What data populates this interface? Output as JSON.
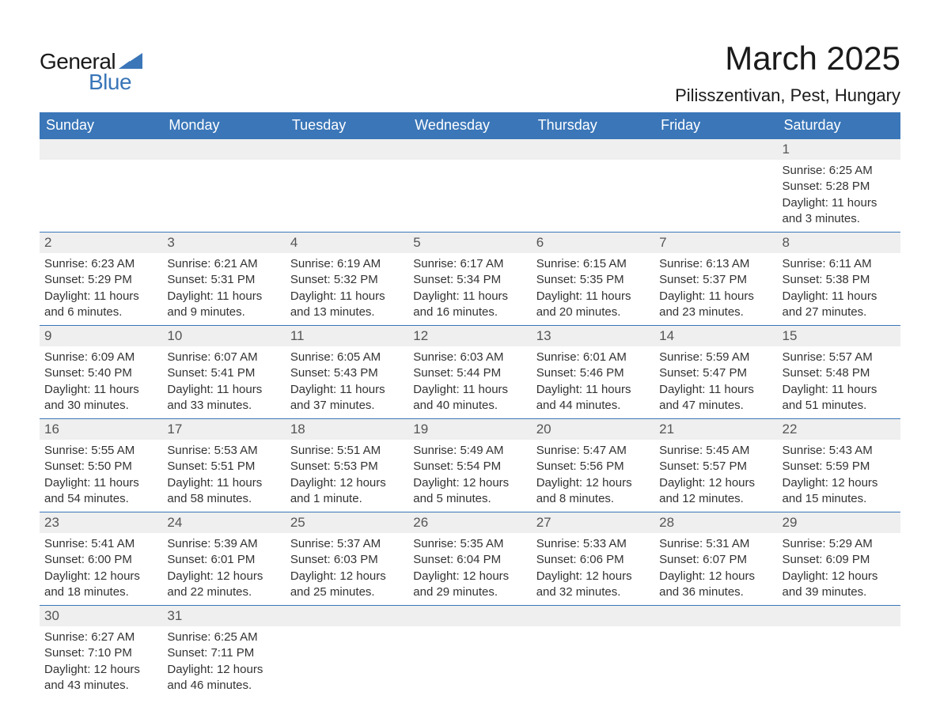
{
  "brand": {
    "word1": "General",
    "word2": "Blue",
    "logo_fill": "#3a76b8",
    "text_color_dark": "#1a1a1a",
    "text_color_blue": "#3a76b8"
  },
  "header": {
    "month_title": "March 2025",
    "location": "Pilisszentivan, Pest, Hungary"
  },
  "calendar": {
    "type": "table",
    "columns": [
      "Sunday",
      "Monday",
      "Tuesday",
      "Wednesday",
      "Thursday",
      "Friday",
      "Saturday"
    ],
    "header_bg": "#3a76b8",
    "header_fg": "#ffffff",
    "daynum_bg": "#efefef",
    "daynum_border_top": "#3a76b8",
    "body_text_color": "#333333",
    "font_family": "Arial",
    "header_fontsize": 18,
    "daynum_fontsize": 17,
    "body_fontsize": 15,
    "weeks": [
      [
        {
          "n": "",
          "sunrise": "",
          "sunset": "",
          "daylight1": "",
          "daylight2": ""
        },
        {
          "n": "",
          "sunrise": "",
          "sunset": "",
          "daylight1": "",
          "daylight2": ""
        },
        {
          "n": "",
          "sunrise": "",
          "sunset": "",
          "daylight1": "",
          "daylight2": ""
        },
        {
          "n": "",
          "sunrise": "",
          "sunset": "",
          "daylight1": "",
          "daylight2": ""
        },
        {
          "n": "",
          "sunrise": "",
          "sunset": "",
          "daylight1": "",
          "daylight2": ""
        },
        {
          "n": "",
          "sunrise": "",
          "sunset": "",
          "daylight1": "",
          "daylight2": ""
        },
        {
          "n": "1",
          "sunrise": "Sunrise: 6:25 AM",
          "sunset": "Sunset: 5:28 PM",
          "daylight1": "Daylight: 11 hours",
          "daylight2": "and 3 minutes."
        }
      ],
      [
        {
          "n": "2",
          "sunrise": "Sunrise: 6:23 AM",
          "sunset": "Sunset: 5:29 PM",
          "daylight1": "Daylight: 11 hours",
          "daylight2": "and 6 minutes."
        },
        {
          "n": "3",
          "sunrise": "Sunrise: 6:21 AM",
          "sunset": "Sunset: 5:31 PM",
          "daylight1": "Daylight: 11 hours",
          "daylight2": "and 9 minutes."
        },
        {
          "n": "4",
          "sunrise": "Sunrise: 6:19 AM",
          "sunset": "Sunset: 5:32 PM",
          "daylight1": "Daylight: 11 hours",
          "daylight2": "and 13 minutes."
        },
        {
          "n": "5",
          "sunrise": "Sunrise: 6:17 AM",
          "sunset": "Sunset: 5:34 PM",
          "daylight1": "Daylight: 11 hours",
          "daylight2": "and 16 minutes."
        },
        {
          "n": "6",
          "sunrise": "Sunrise: 6:15 AM",
          "sunset": "Sunset: 5:35 PM",
          "daylight1": "Daylight: 11 hours",
          "daylight2": "and 20 minutes."
        },
        {
          "n": "7",
          "sunrise": "Sunrise: 6:13 AM",
          "sunset": "Sunset: 5:37 PM",
          "daylight1": "Daylight: 11 hours",
          "daylight2": "and 23 minutes."
        },
        {
          "n": "8",
          "sunrise": "Sunrise: 6:11 AM",
          "sunset": "Sunset: 5:38 PM",
          "daylight1": "Daylight: 11 hours",
          "daylight2": "and 27 minutes."
        }
      ],
      [
        {
          "n": "9",
          "sunrise": "Sunrise: 6:09 AM",
          "sunset": "Sunset: 5:40 PM",
          "daylight1": "Daylight: 11 hours",
          "daylight2": "and 30 minutes."
        },
        {
          "n": "10",
          "sunrise": "Sunrise: 6:07 AM",
          "sunset": "Sunset: 5:41 PM",
          "daylight1": "Daylight: 11 hours",
          "daylight2": "and 33 minutes."
        },
        {
          "n": "11",
          "sunrise": "Sunrise: 6:05 AM",
          "sunset": "Sunset: 5:43 PM",
          "daylight1": "Daylight: 11 hours",
          "daylight2": "and 37 minutes."
        },
        {
          "n": "12",
          "sunrise": "Sunrise: 6:03 AM",
          "sunset": "Sunset: 5:44 PM",
          "daylight1": "Daylight: 11 hours",
          "daylight2": "and 40 minutes."
        },
        {
          "n": "13",
          "sunrise": "Sunrise: 6:01 AM",
          "sunset": "Sunset: 5:46 PM",
          "daylight1": "Daylight: 11 hours",
          "daylight2": "and 44 minutes."
        },
        {
          "n": "14",
          "sunrise": "Sunrise: 5:59 AM",
          "sunset": "Sunset: 5:47 PM",
          "daylight1": "Daylight: 11 hours",
          "daylight2": "and 47 minutes."
        },
        {
          "n": "15",
          "sunrise": "Sunrise: 5:57 AM",
          "sunset": "Sunset: 5:48 PM",
          "daylight1": "Daylight: 11 hours",
          "daylight2": "and 51 minutes."
        }
      ],
      [
        {
          "n": "16",
          "sunrise": "Sunrise: 5:55 AM",
          "sunset": "Sunset: 5:50 PM",
          "daylight1": "Daylight: 11 hours",
          "daylight2": "and 54 minutes."
        },
        {
          "n": "17",
          "sunrise": "Sunrise: 5:53 AM",
          "sunset": "Sunset: 5:51 PM",
          "daylight1": "Daylight: 11 hours",
          "daylight2": "and 58 minutes."
        },
        {
          "n": "18",
          "sunrise": "Sunrise: 5:51 AM",
          "sunset": "Sunset: 5:53 PM",
          "daylight1": "Daylight: 12 hours",
          "daylight2": "and 1 minute."
        },
        {
          "n": "19",
          "sunrise": "Sunrise: 5:49 AM",
          "sunset": "Sunset: 5:54 PM",
          "daylight1": "Daylight: 12 hours",
          "daylight2": "and 5 minutes."
        },
        {
          "n": "20",
          "sunrise": "Sunrise: 5:47 AM",
          "sunset": "Sunset: 5:56 PM",
          "daylight1": "Daylight: 12 hours",
          "daylight2": "and 8 minutes."
        },
        {
          "n": "21",
          "sunrise": "Sunrise: 5:45 AM",
          "sunset": "Sunset: 5:57 PM",
          "daylight1": "Daylight: 12 hours",
          "daylight2": "and 12 minutes."
        },
        {
          "n": "22",
          "sunrise": "Sunrise: 5:43 AM",
          "sunset": "Sunset: 5:59 PM",
          "daylight1": "Daylight: 12 hours",
          "daylight2": "and 15 minutes."
        }
      ],
      [
        {
          "n": "23",
          "sunrise": "Sunrise: 5:41 AM",
          "sunset": "Sunset: 6:00 PM",
          "daylight1": "Daylight: 12 hours",
          "daylight2": "and 18 minutes."
        },
        {
          "n": "24",
          "sunrise": "Sunrise: 5:39 AM",
          "sunset": "Sunset: 6:01 PM",
          "daylight1": "Daylight: 12 hours",
          "daylight2": "and 22 minutes."
        },
        {
          "n": "25",
          "sunrise": "Sunrise: 5:37 AM",
          "sunset": "Sunset: 6:03 PM",
          "daylight1": "Daylight: 12 hours",
          "daylight2": "and 25 minutes."
        },
        {
          "n": "26",
          "sunrise": "Sunrise: 5:35 AM",
          "sunset": "Sunset: 6:04 PM",
          "daylight1": "Daylight: 12 hours",
          "daylight2": "and 29 minutes."
        },
        {
          "n": "27",
          "sunrise": "Sunrise: 5:33 AM",
          "sunset": "Sunset: 6:06 PM",
          "daylight1": "Daylight: 12 hours",
          "daylight2": "and 32 minutes."
        },
        {
          "n": "28",
          "sunrise": "Sunrise: 5:31 AM",
          "sunset": "Sunset: 6:07 PM",
          "daylight1": "Daylight: 12 hours",
          "daylight2": "and 36 minutes."
        },
        {
          "n": "29",
          "sunrise": "Sunrise: 5:29 AM",
          "sunset": "Sunset: 6:09 PM",
          "daylight1": "Daylight: 12 hours",
          "daylight2": "and 39 minutes."
        }
      ],
      [
        {
          "n": "30",
          "sunrise": "Sunrise: 6:27 AM",
          "sunset": "Sunset: 7:10 PM",
          "daylight1": "Daylight: 12 hours",
          "daylight2": "and 43 minutes."
        },
        {
          "n": "31",
          "sunrise": "Sunrise: 6:25 AM",
          "sunset": "Sunset: 7:11 PM",
          "daylight1": "Daylight: 12 hours",
          "daylight2": "and 46 minutes."
        },
        {
          "n": "",
          "sunrise": "",
          "sunset": "",
          "daylight1": "",
          "daylight2": ""
        },
        {
          "n": "",
          "sunrise": "",
          "sunset": "",
          "daylight1": "",
          "daylight2": ""
        },
        {
          "n": "",
          "sunrise": "",
          "sunset": "",
          "daylight1": "",
          "daylight2": ""
        },
        {
          "n": "",
          "sunrise": "",
          "sunset": "",
          "daylight1": "",
          "daylight2": ""
        },
        {
          "n": "",
          "sunrise": "",
          "sunset": "",
          "daylight1": "",
          "daylight2": ""
        }
      ]
    ]
  }
}
